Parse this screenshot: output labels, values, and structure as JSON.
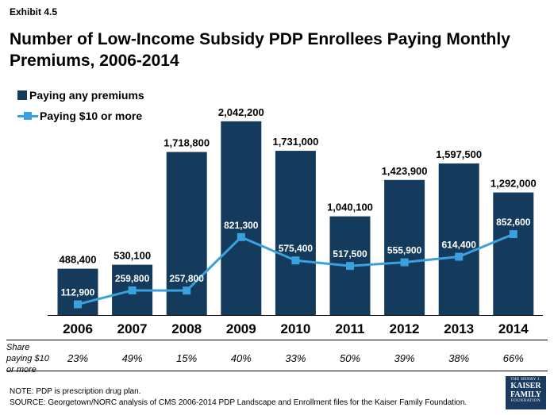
{
  "exhibit": "Exhibit 4.5",
  "title": "Number of Low-Income Subsidy PDP Enrollees Paying Monthly Premiums, 2006-2014",
  "chart_data": {
    "type": "bar",
    "categories": [
      "2006",
      "2007",
      "2008",
      "2009",
      "2010",
      "2011",
      "2012",
      "2013",
      "2014"
    ],
    "series": [
      {
        "name": "Paying any premiums",
        "type": "bar",
        "color": "#143a5c",
        "values": [
          488400,
          530100,
          1718800,
          2042200,
          1731000,
          1040100,
          1423900,
          1597500,
          1292000
        ],
        "labels": [
          "488,400",
          "530,100",
          "1,718,800",
          "2,042,200",
          "1,731,000",
          "1,040,100",
          "1,423,900",
          "1,597,500",
          "1,292,000"
        ]
      },
      {
        "name": "Paying $10 or more",
        "type": "line",
        "color": "#3aa0de",
        "values": [
          112900,
          259800,
          257800,
          821300,
          575400,
          517500,
          555900,
          614400,
          852600
        ],
        "labels": [
          "112,900",
          "259,800",
          "257,800",
          "821,300",
          "575,400",
          "517,500",
          "555,900",
          "614,400",
          "852,600"
        ]
      }
    ],
    "ylim": [
      0,
      2200000
    ],
    "grid": false,
    "legend": "top-left",
    "share_label": "Share paying $10 or more",
    "share_values": [
      "23%",
      "49%",
      "15%",
      "40%",
      "33%",
      "50%",
      "39%",
      "38%",
      "66%"
    ]
  },
  "footer": {
    "note": "NOTE: PDP is prescription drug plan.",
    "source": "SOURCE: Georgetown/NORC analysis of CMS 2006-2014 PDP Landscape and Enrollment files for the Kaiser Family Foundation."
  },
  "logo": {
    "line1": "THE HENRY J.",
    "line2": "KAISER",
    "line3": "FAMILY",
    "line4": "FOUNDATION"
  }
}
